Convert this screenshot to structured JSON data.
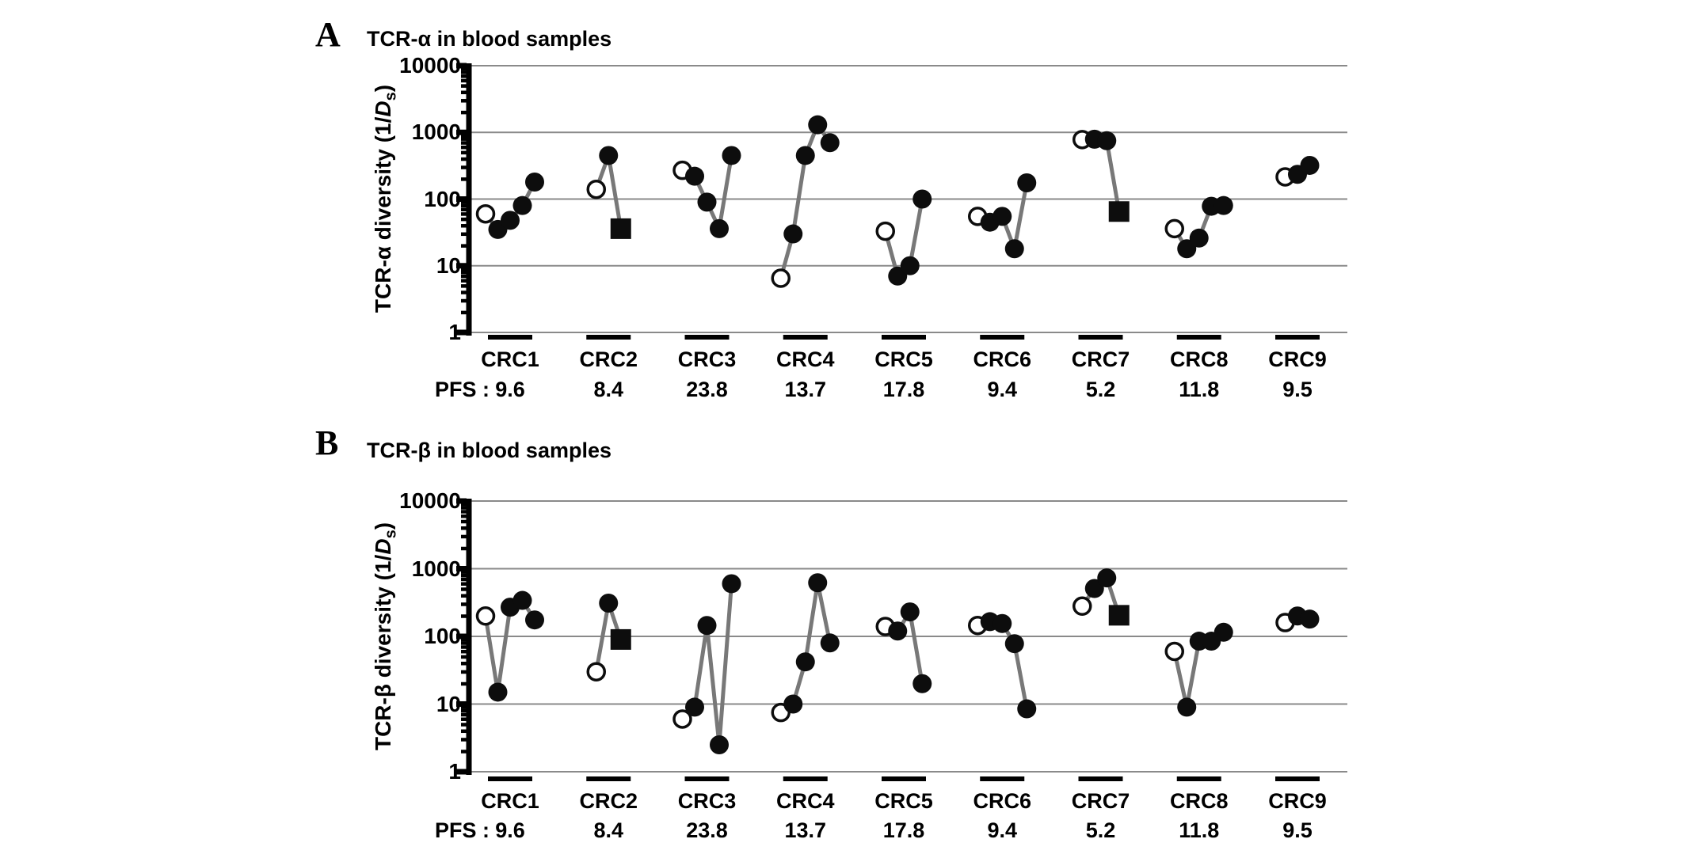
{
  "colors": {
    "marker": "#0d0d0d",
    "connector_line": "#787878",
    "gridline": "#8a8a8a",
    "axis": "#000000",
    "text": "#000000",
    "background": "#ffffff",
    "open_marker_fill": "#ffffff"
  },
  "chart_data": [
    {
      "type": "line",
      "panel_letter": "A",
      "title": "TCR-α in blood samples",
      "ylabel": "TCR-α diversity (1/Ds)",
      "ylabel_parts": {
        "prefix": "TCR-α diversity (1/",
        "italic": "D",
        "sub": "s",
        "suffix": ")"
      },
      "yscale": "log",
      "ylim": [
        1,
        10000
      ],
      "ytick_labels": [
        "10000",
        "1000",
        "100",
        "10",
        "1"
      ],
      "ytick_values": [
        10000,
        1000,
        100,
        10,
        1
      ],
      "grid": "horizontal-gridlines-at-decades",
      "legend": "none",
      "categories": [
        "CRC1",
        "CRC2",
        "CRC3",
        "CRC4",
        "CRC5",
        "CRC6",
        "CRC7",
        "CRC8",
        "CRC9"
      ],
      "pfs_row_label": "PFS :",
      "pfs_values": [
        "9.6",
        "8.4",
        "23.8",
        "13.7",
        "17.8",
        "9.4",
        "5.2",
        "11.8",
        "9.5"
      ],
      "marker_types_note": "open=open-circle first sample, filled=black-circle, square=black-square last sample",
      "series": [
        {
          "category": "CRC1",
          "values": [
            60,
            35,
            48,
            80,
            180
          ],
          "markers": [
            "open",
            "filled",
            "filled",
            "filled",
            "filled"
          ]
        },
        {
          "category": "CRC2",
          "values": [
            140,
            450,
            36
          ],
          "markers": [
            "open",
            "filled",
            "square"
          ]
        },
        {
          "category": "CRC3",
          "values": [
            270,
            220,
            90,
            36,
            450
          ],
          "markers": [
            "open",
            "filled",
            "filled",
            "filled",
            "filled"
          ]
        },
        {
          "category": "CRC4",
          "values": [
            6.5,
            30,
            450,
            1300,
            700
          ],
          "markers": [
            "open",
            "filled",
            "filled",
            "filled",
            "filled"
          ]
        },
        {
          "category": "CRC5",
          "values": [
            33,
            7,
            10,
            100
          ],
          "markers": [
            "open",
            "filled",
            "filled",
            "filled"
          ]
        },
        {
          "category": "CRC6",
          "values": [
            55,
            45,
            55,
            18,
            175
          ],
          "markers": [
            "open",
            "filled",
            "filled",
            "filled",
            "filled"
          ]
        },
        {
          "category": "CRC7",
          "values": [
            780,
            790,
            750,
            65
          ],
          "markers": [
            "open",
            "filled",
            "filled",
            "square"
          ]
        },
        {
          "category": "CRC8",
          "values": [
            36,
            18,
            26,
            78,
            80
          ],
          "markers": [
            "open",
            "filled",
            "filled",
            "filled",
            "filled"
          ]
        },
        {
          "category": "CRC9",
          "values": [
            215,
            235,
            320
          ],
          "markers": [
            "open",
            "filled",
            "filled"
          ]
        }
      ]
    },
    {
      "type": "line",
      "panel_letter": "B",
      "title": "TCR-β in blood samples",
      "ylabel": "TCR-β diversity (1/Ds)",
      "ylabel_parts": {
        "prefix": "TCR-β diversity (1/",
        "italic": "D",
        "sub": "s",
        "suffix": ")"
      },
      "yscale": "log",
      "ylim": [
        1,
        10000
      ],
      "ytick_labels": [
        "10000",
        "1000",
        "100",
        "10",
        "1"
      ],
      "ytick_values": [
        10000,
        1000,
        100,
        10,
        1
      ],
      "grid": "horizontal-gridlines-at-decades",
      "legend": "none",
      "categories": [
        "CRC1",
        "CRC2",
        "CRC3",
        "CRC4",
        "CRC5",
        "CRC6",
        "CRC7",
        "CRC8",
        "CRC9"
      ],
      "pfs_row_label": "PFS :",
      "pfs_values": [
        "9.6",
        "8.4",
        "23.8",
        "13.7",
        "17.8",
        "9.4",
        "5.2",
        "11.8",
        "9.5"
      ],
      "series": [
        {
          "category": "CRC1",
          "values": [
            200,
            15,
            270,
            340,
            175
          ],
          "markers": [
            "open",
            "filled",
            "filled",
            "filled",
            "filled"
          ]
        },
        {
          "category": "CRC2",
          "values": [
            30,
            310,
            90
          ],
          "markers": [
            "open",
            "filled",
            "square"
          ]
        },
        {
          "category": "CRC3",
          "values": [
            6,
            9,
            145,
            2.5,
            600
          ],
          "markers": [
            "open",
            "filled",
            "filled",
            "filled",
            "filled"
          ]
        },
        {
          "category": "CRC4",
          "values": [
            7.5,
            10,
            42,
            620,
            80
          ],
          "markers": [
            "open",
            "filled",
            "filled",
            "filled",
            "filled"
          ]
        },
        {
          "category": "CRC5",
          "values": [
            140,
            120,
            230,
            20
          ],
          "markers": [
            "open",
            "filled",
            "filled",
            "filled"
          ]
        },
        {
          "category": "CRC6",
          "values": [
            145,
            165,
            155,
            78,
            8.5
          ],
          "markers": [
            "open",
            "filled",
            "filled",
            "filled",
            "filled"
          ]
        },
        {
          "category": "CRC7",
          "values": [
            280,
            510,
            730,
            205
          ],
          "markers": [
            "open",
            "filled",
            "filled",
            "square"
          ]
        },
        {
          "category": "CRC8",
          "values": [
            60,
            9,
            85,
            85,
            115
          ],
          "markers": [
            "open",
            "filled",
            "filled",
            "filled",
            "filled"
          ]
        },
        {
          "category": "CRC9",
          "values": [
            160,
            200,
            180
          ],
          "markers": [
            "open",
            "filled",
            "filled"
          ]
        }
      ]
    }
  ]
}
